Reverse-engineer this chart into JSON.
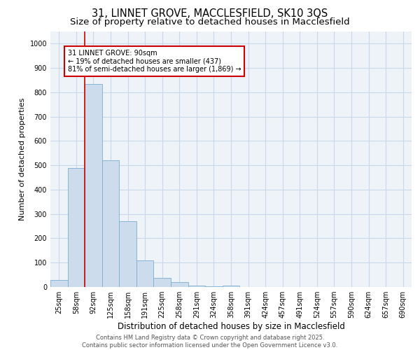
{
  "title_line1": "31, LINNET GROVE, MACCLESFIELD, SK10 3QS",
  "title_line2": "Size of property relative to detached houses in Macclesfield",
  "xlabel": "Distribution of detached houses by size in Macclesfield",
  "ylabel": "Number of detached properties",
  "categories": [
    "25sqm",
    "58sqm",
    "92sqm",
    "125sqm",
    "158sqm",
    "191sqm",
    "225sqm",
    "258sqm",
    "291sqm",
    "324sqm",
    "358sqm",
    "391sqm",
    "424sqm",
    "457sqm",
    "491sqm",
    "524sqm",
    "557sqm",
    "590sqm",
    "624sqm",
    "657sqm",
    "690sqm"
  ],
  "values": [
    30,
    490,
    835,
    520,
    270,
    108,
    37,
    20,
    5,
    3,
    5,
    0,
    0,
    0,
    0,
    0,
    0,
    0,
    0,
    0,
    0
  ],
  "bar_color": "#ccdcec",
  "bar_edge_color": "#7aaed0",
  "annotation_box_text": "31 LINNET GROVE: 90sqm\n← 19% of detached houses are smaller (437)\n81% of semi-detached houses are larger (1,869) →",
  "annotation_box_color": "#ffffff",
  "annotation_box_edge_color": "#cc0000",
  "vline_color": "#cc0000",
  "vline_x_index": 2,
  "ylim": [
    0,
    1050
  ],
  "yticks": [
    0,
    100,
    200,
    300,
    400,
    500,
    600,
    700,
    800,
    900,
    1000
  ],
  "grid_color": "#c8d8e8",
  "background_color": "#eef3f8",
  "footer_text": "Contains HM Land Registry data © Crown copyright and database right 2025.\nContains public sector information licensed under the Open Government Licence v3.0.",
  "title_fontsize": 10.5,
  "subtitle_fontsize": 9.5,
  "xlabel_fontsize": 8.5,
  "ylabel_fontsize": 8,
  "tick_fontsize": 7,
  "annotation_fontsize": 7,
  "footer_fontsize": 6
}
